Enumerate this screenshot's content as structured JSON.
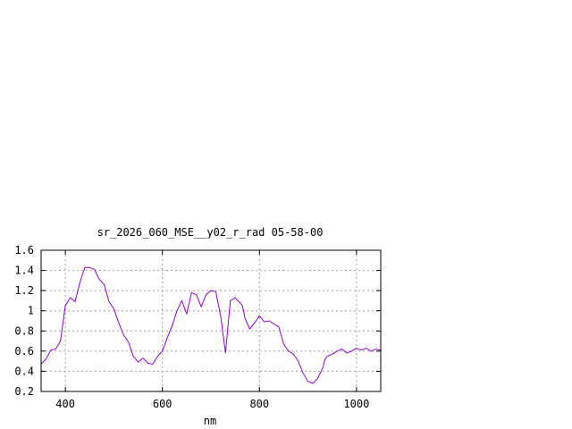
{
  "chart_data": {
    "type": "line",
    "title": "sr_2026_060_MSE__y02_r_rad 05-58-00",
    "xlabel": "nm",
    "ylabel": "",
    "xlim": [
      350,
      1050
    ],
    "ylim": [
      0.2,
      1.6
    ],
    "xticks": [
      400,
      600,
      800,
      1000
    ],
    "xtick_labels": [
      "400",
      "600",
      "800",
      "1000"
    ],
    "yticks": [
      0.2,
      0.4,
      0.6,
      0.8,
      1.0,
      1.2,
      1.4,
      1.6
    ],
    "ytick_labels": [
      "0.2",
      "0.4",
      "0.6",
      "0.8",
      "1",
      "1.2",
      "1.4",
      "1.6"
    ],
    "grid": true,
    "color": "#9400d3",
    "series": [
      {
        "x": [
          350,
          360,
          370,
          380,
          390,
          400,
          410,
          420,
          430,
          440,
          450,
          460,
          470,
          480,
          490,
          500,
          510,
          520,
          530,
          540,
          550,
          560,
          570,
          580,
          590,
          600,
          610,
          620,
          630,
          640,
          650,
          660,
          670,
          680,
          690,
          700,
          710,
          720,
          730,
          740,
          750,
          755,
          760,
          765,
          770,
          780,
          790,
          800,
          810,
          820,
          830,
          840,
          850,
          860,
          870,
          880,
          890,
          900,
          910,
          920,
          930,
          935,
          940,
          950,
          960,
          970,
          980,
          990,
          1000,
          1010,
          1020,
          1030,
          1040,
          1050
        ],
        "y": [
          0.47,
          0.52,
          0.61,
          0.62,
          0.7,
          1.05,
          1.13,
          1.09,
          1.28,
          1.43,
          1.43,
          1.41,
          1.31,
          1.26,
          1.09,
          1.02,
          0.88,
          0.76,
          0.69,
          0.55,
          0.49,
          0.53,
          0.48,
          0.47,
          0.55,
          0.6,
          0.73,
          0.85,
          1.0,
          1.1,
          0.97,
          1.18,
          1.16,
          1.04,
          1.16,
          1.2,
          1.19,
          0.95,
          0.58,
          1.1,
          1.13,
          1.1,
          1.08,
          1.05,
          0.93,
          0.82,
          0.88,
          0.95,
          0.89,
          0.9,
          0.87,
          0.84,
          0.67,
          0.6,
          0.57,
          0.5,
          0.38,
          0.3,
          0.28,
          0.33,
          0.43,
          0.52,
          0.55,
          0.57,
          0.6,
          0.62,
          0.58,
          0.6,
          0.63,
          0.61,
          0.63,
          0.6,
          0.62,
          0.61
        ]
      }
    ]
  }
}
